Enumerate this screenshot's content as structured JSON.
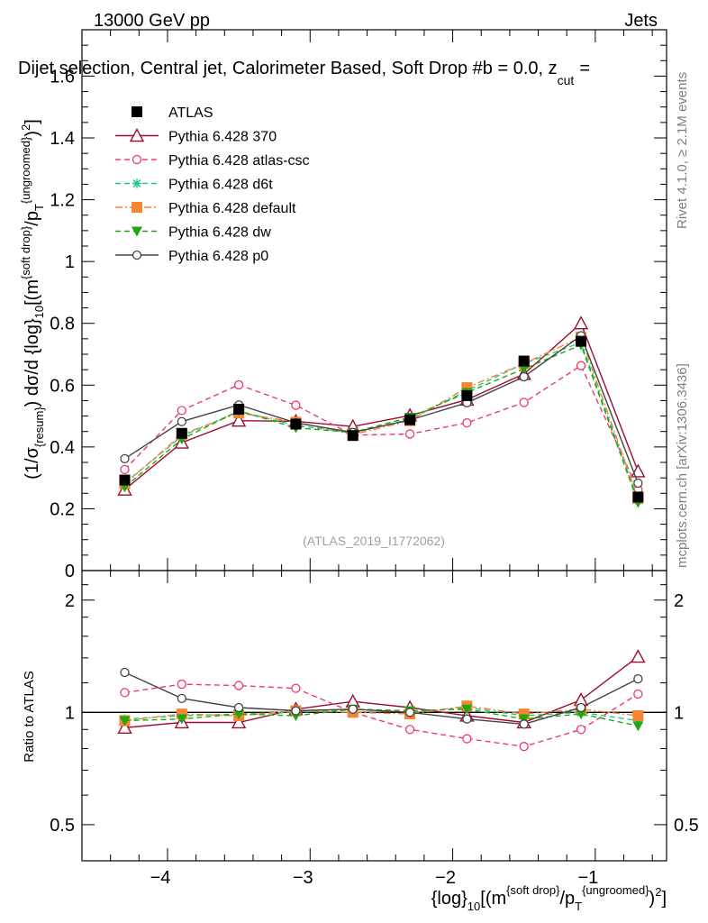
{
  "header": {
    "energy": "13000 GeV pp",
    "process": "Jets",
    "title": "Dijet selection, Central jet, Calorimeter Based, Soft Drop #b = 0.0, z",
    "title_sub": "cut",
    "title_tail": "=",
    "rivet_label": "Rivet 4.1.0, ≥ 2.1M events",
    "mcplots_label": "mcplots.cern.ch [arXiv:1306.3436]",
    "analysis_ref": "(ATLAS_2019_I1772062)"
  },
  "axes": {
    "main_ylabel": "(1/σ{resum}) dσ/d {log}10[(m{soft drop}/pT{ungroomed})2]",
    "ratio_ylabel": "Ratio to ATLAS",
    "xlabel": "{log}10[(m{soft drop}/pT{ungroomed})2]"
  },
  "chart_data": [
    {
      "type": "line",
      "panel": "main",
      "title": "Dijet selection, Central jet, Calorimeter Based, Soft Drop #b = 0.0, z_cut =",
      "xlim": [
        -4.6,
        -0.5
      ],
      "ylim": [
        0,
        1.75
      ],
      "x_ticks": [
        -4,
        -3,
        -2,
        -1
      ],
      "y_ticks": [
        0,
        0.2,
        0.4,
        0.6,
        0.8,
        1,
        1.2,
        1.4,
        1.6
      ],
      "x": [
        -4.3,
        -3.9,
        -3.5,
        -3.1,
        -2.7,
        -2.3,
        -1.9,
        -1.5,
        -1.1,
        -0.7
      ],
      "legend_position": "top-left",
      "series": [
        {
          "name": "ATLAS",
          "color": "#000000",
          "marker": "square",
          "line": "none",
          "values": [
            0.293,
            0.444,
            0.522,
            0.474,
            0.437,
            0.488,
            0.566,
            0.678,
            0.742,
            0.238
          ]
        },
        {
          "name": "Pythia 6.428 370",
          "color": "#9b0d2f",
          "marker": "triangle-open",
          "line": "solid",
          "values": [
            0.262,
            0.414,
            0.485,
            0.483,
            0.466,
            0.502,
            0.553,
            0.636,
            0.8,
            0.321
          ]
        },
        {
          "name": "Pythia 6.428 atlas-csc",
          "color": "#f0386b",
          "marker": "circle-open",
          "line": "dashed",
          "values": [
            0.327,
            0.518,
            0.601,
            0.535,
            0.438,
            0.442,
            0.478,
            0.544,
            0.663,
            0.262
          ]
        },
        {
          "name": "Pythia 6.428 d6t",
          "color": "#1fc68a",
          "marker": "star",
          "line": "dashed",
          "values": [
            0.283,
            0.435,
            0.515,
            0.47,
            0.445,
            0.49,
            0.582,
            0.67,
            0.738,
            0.228
          ]
        },
        {
          "name": "Pythia 6.428 default",
          "color": "#f58433",
          "marker": "square",
          "line": "dashdot",
          "values": [
            0.28,
            0.44,
            0.51,
            0.48,
            0.44,
            0.485,
            0.592,
            0.67,
            0.755,
            0.233
          ]
        },
        {
          "name": "Pythia 6.428 dw",
          "color": "#22a611",
          "marker": "triangle-down",
          "line": "dashed",
          "values": [
            0.27,
            0.425,
            0.517,
            0.462,
            0.447,
            0.496,
            0.576,
            0.653,
            0.73,
            0.22
          ]
        },
        {
          "name": "Pythia 6.428 p0",
          "color": "#444444",
          "marker": "circle-open",
          "line": "solid",
          "values": [
            0.362,
            0.482,
            0.536,
            0.478,
            0.447,
            0.487,
            0.543,
            0.627,
            0.76,
            0.283
          ]
        }
      ]
    },
    {
      "type": "line",
      "panel": "ratio",
      "ylabel": "Ratio to ATLAS",
      "xlim": [
        -4.6,
        -0.5
      ],
      "ylim": [
        0.4,
        2.4
      ],
      "y_scale": "log",
      "x_ticks": [
        -4,
        -3,
        -2,
        -1
      ],
      "y_ticks": [
        0.5,
        1,
        2
      ],
      "x": [
        -4.3,
        -3.9,
        -3.5,
        -3.1,
        -2.7,
        -2.3,
        -1.9,
        -1.5,
        -1.1,
        -0.7
      ],
      "series": [
        {
          "name": "Pythia 6.428 370",
          "values": [
            0.91,
            0.94,
            0.94,
            1.02,
            1.07,
            1.03,
            0.98,
            0.94,
            1.08,
            1.41
          ]
        },
        {
          "name": "Pythia 6.428 atlas-csc",
          "values": [
            1.13,
            1.19,
            1.18,
            1.16,
            1.0,
            0.9,
            0.85,
            0.81,
            0.9,
            1.12
          ]
        },
        {
          "name": "Pythia 6.428 d6t",
          "values": [
            0.96,
            0.98,
            0.99,
            1.0,
            1.02,
            1.0,
            1.03,
            0.98,
            1.0,
            0.95
          ]
        },
        {
          "name": "Pythia 6.428 default",
          "values": [
            0.95,
            0.99,
            0.98,
            1.01,
            1.0,
            0.99,
            1.04,
            0.99,
            1.02,
            0.98
          ]
        },
        {
          "name": "Pythia 6.428 dw",
          "values": [
            0.95,
            0.96,
            0.99,
            0.98,
            1.02,
            1.01,
            1.02,
            0.96,
            0.99,
            0.92
          ]
        },
        {
          "name": "Pythia 6.428 p0",
          "values": [
            1.28,
            1.09,
            1.03,
            1.01,
            1.02,
            1.0,
            0.96,
            0.93,
            1.03,
            1.23
          ]
        }
      ]
    }
  ]
}
